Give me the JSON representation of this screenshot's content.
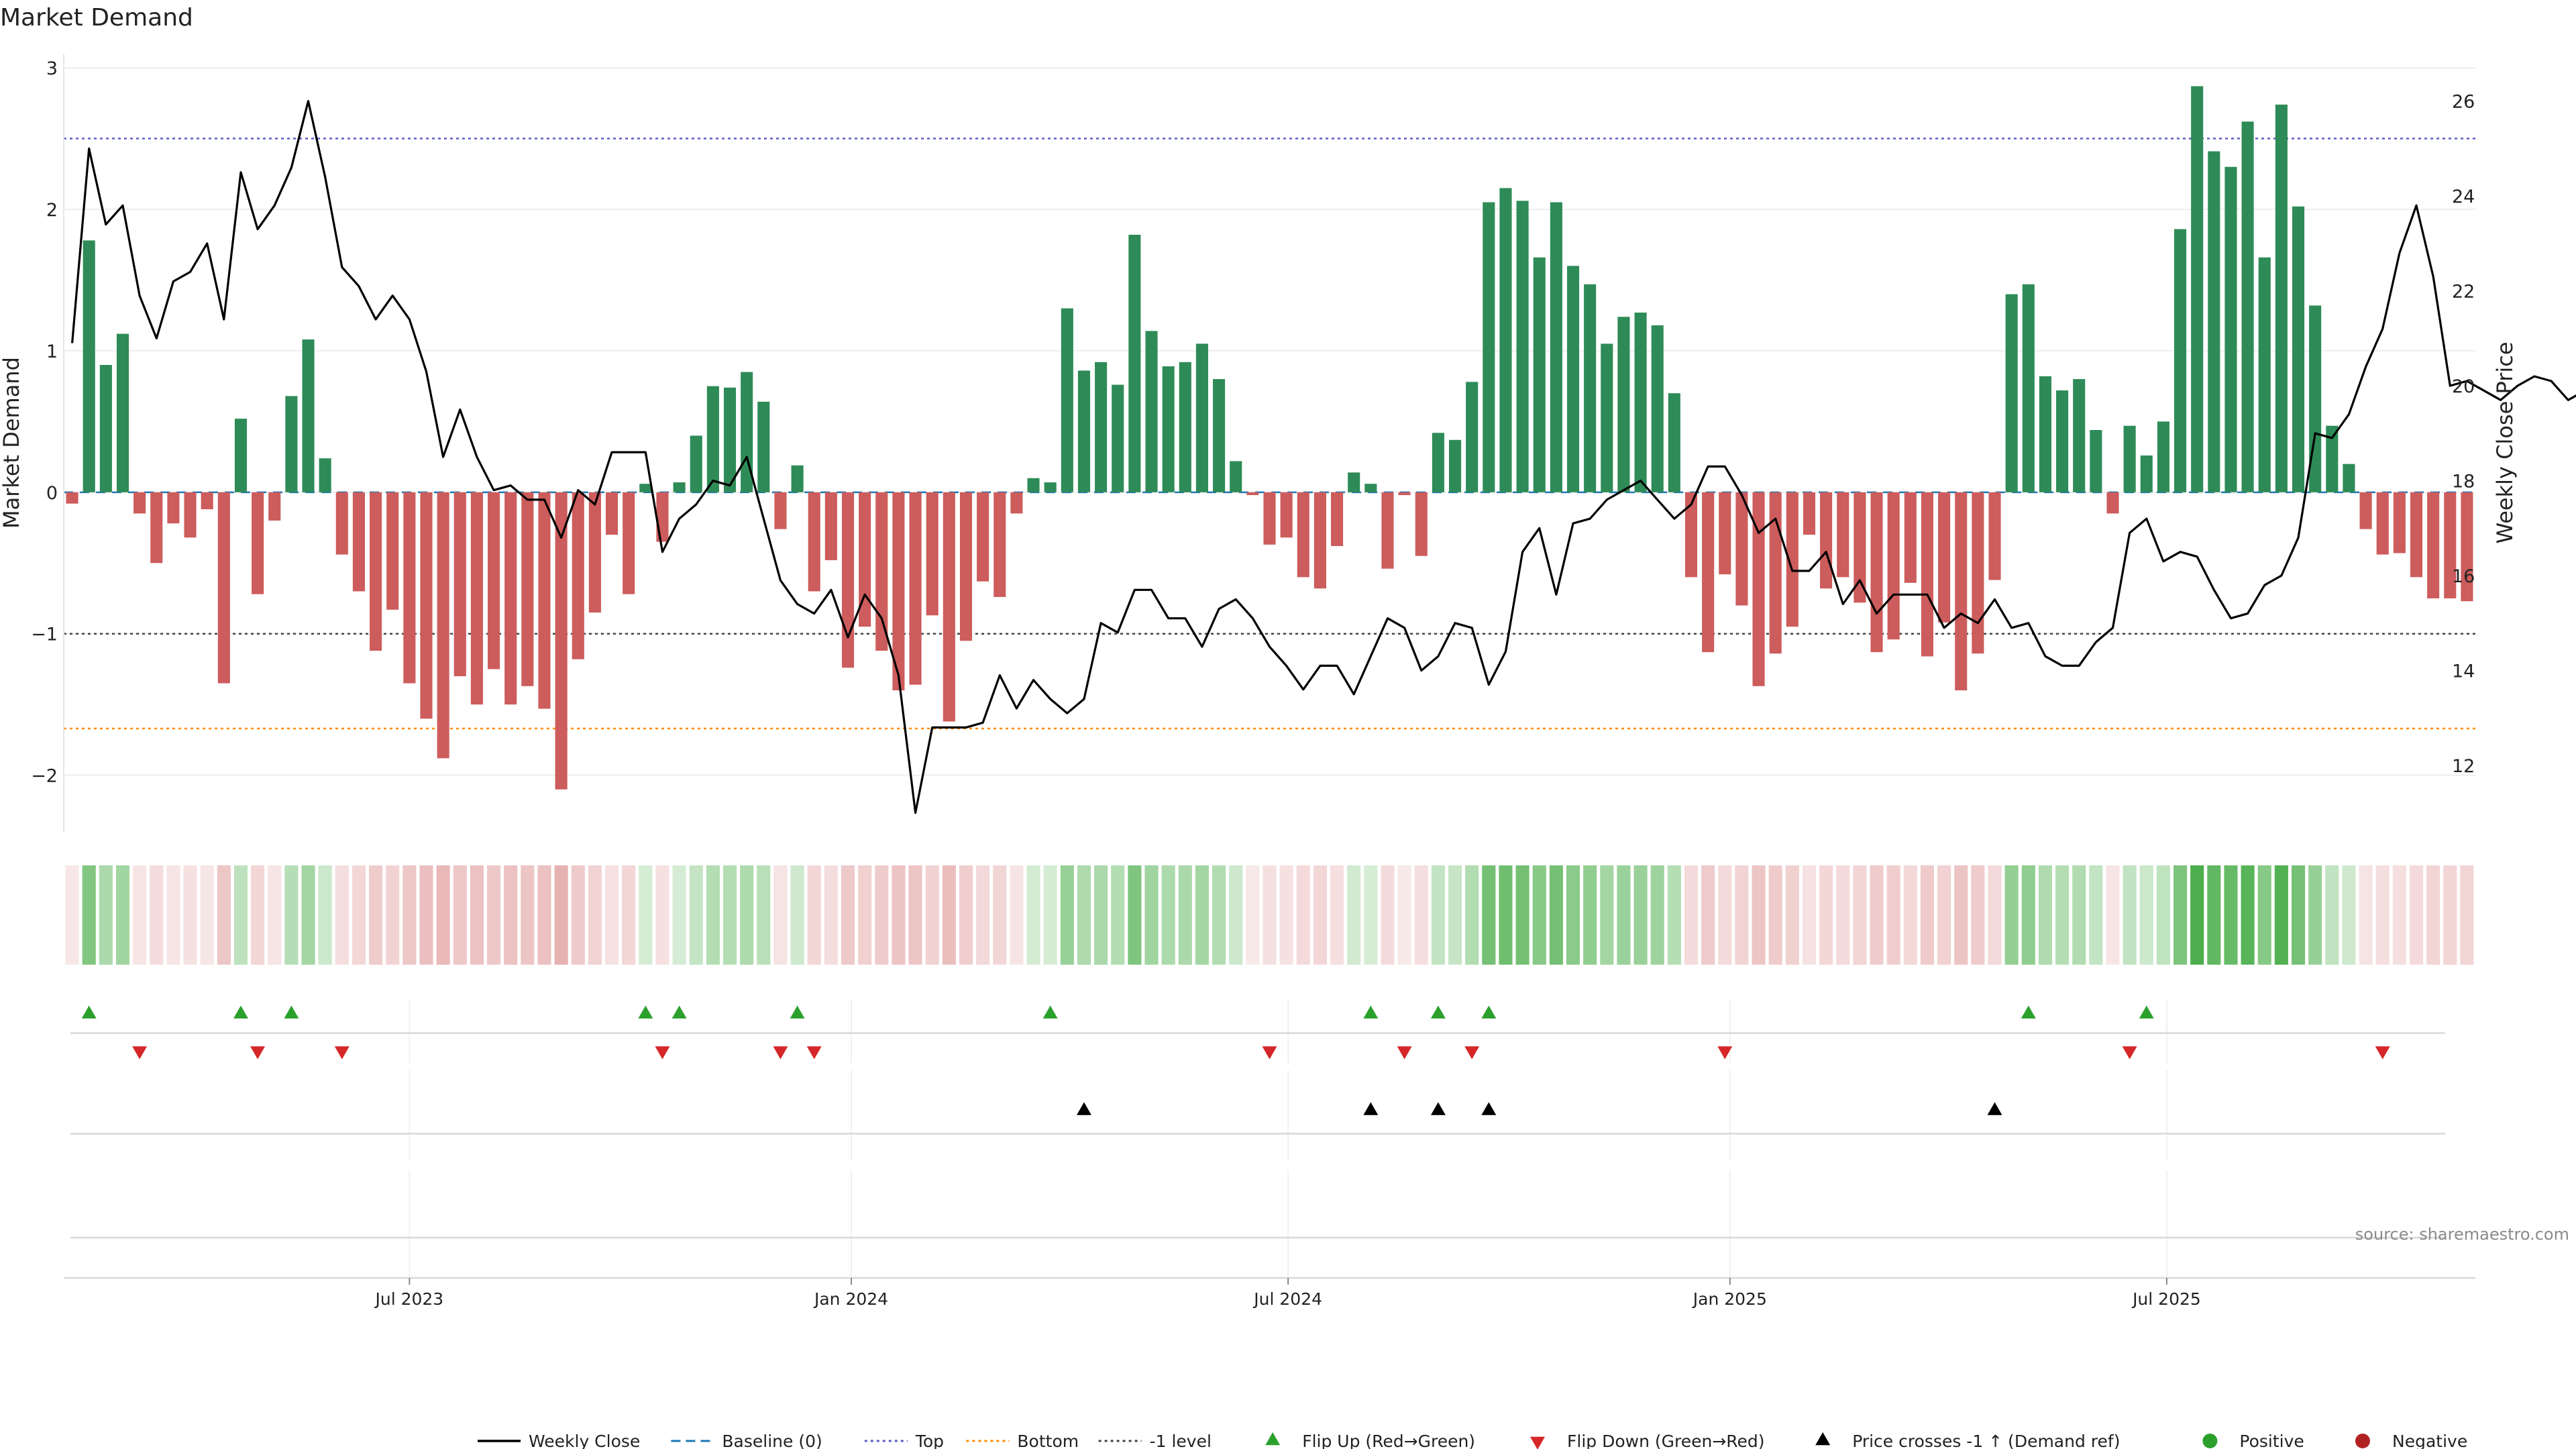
{
  "chart_data": {
    "type": "bar",
    "title": "Market Demand",
    "ylabel": "Market Demand",
    "y2label": "Weekly Close Price",
    "ylim": [
      -2.4,
      3.1
    ],
    "y2lim": [
      10.6,
      27.0
    ],
    "yticks": [
      3,
      2,
      1,
      0,
      -1,
      -2
    ],
    "ytick_labels": [
      "3",
      "2",
      "1",
      "0",
      "−1",
      "−2"
    ],
    "y2ticks": [
      26,
      24,
      22,
      20,
      18,
      16,
      14,
      12
    ],
    "y2tick_labels": [
      "26",
      "24",
      "22",
      "20",
      "18",
      "16",
      "14",
      "12"
    ],
    "xticks": [
      {
        "label": "Jul 2023",
        "index": 20
      },
      {
        "label": "Jan 2024",
        "index": 46.2
      },
      {
        "label": "Jul 2024",
        "index": 72.1
      },
      {
        "label": "Jan 2025",
        "index": 98.3
      },
      {
        "label": "Jul 2025",
        "index": 124.2
      }
    ],
    "reference_lines": {
      "top": 2.5,
      "bottom": -1.67,
      "minus_one": -1.0,
      "baseline": 0
    },
    "demand": [
      -0.08,
      1.78,
      0.9,
      1.12,
      -0.15,
      -0.5,
      -0.22,
      -0.32,
      -0.12,
      -1.35,
      0.52,
      -0.72,
      -0.2,
      0.68,
      1.08,
      0.24,
      -0.44,
      -0.7,
      -1.12,
      -0.83,
      -1.35,
      -1.6,
      -1.88,
      -1.3,
      -1.5,
      -1.25,
      -1.5,
      -1.37,
      -1.53,
      -2.1,
      -1.18,
      -0.85,
      -0.3,
      -0.72,
      0.06,
      -0.35,
      0.07,
      0.4,
      0.75,
      0.74,
      0.85,
      0.64,
      -0.26,
      0.19,
      -0.7,
      -0.48,
      -1.24,
      -0.95,
      -1.12,
      -1.4,
      -1.36,
      -0.87,
      -1.62,
      -1.05,
      -0.63,
      -0.74,
      -0.15,
      0.1,
      0.07,
      1.3,
      0.86,
      0.92,
      0.76,
      1.82,
      1.14,
      0.89,
      0.92,
      1.05,
      0.8,
      0.22,
      -0.02,
      -0.37,
      -0.32,
      -0.6,
      -0.68,
      -0.38,
      0.14,
      0.06,
      -0.54,
      -0.02,
      -0.45,
      0.42,
      0.37,
      0.78,
      2.05,
      2.15,
      2.06,
      1.66,
      2.05,
      1.6,
      1.47,
      1.05,
      1.24,
      1.27,
      1.18,
      0.7,
      -0.6,
      -1.13,
      -0.58,
      -0.8,
      -1.37,
      -1.14,
      -0.95,
      -0.3,
      -0.68,
      -0.6,
      -0.78,
      -1.13,
      -1.04,
      -0.64,
      -1.16,
      -0.92,
      -1.4,
      -1.14,
      -0.62,
      1.4,
      1.47,
      0.82,
      0.72,
      0.8,
      0.44,
      -0.15,
      0.47,
      0.26,
      0.5,
      1.86,
      2.87,
      2.41,
      2.3,
      2.62,
      1.66,
      2.74,
      2.02,
      1.32,
      0.47,
      0.2,
      -0.26,
      -0.44,
      -0.43,
      -0.6,
      -0.75,
      -0.75,
      -0.77
    ],
    "weekly_close": [
      20.9,
      25.0,
      23.4,
      23.8,
      21.9,
      21.0,
      22.2,
      22.4,
      23.0,
      21.4,
      24.5,
      23.3,
      23.8,
      24.6,
      26.0,
      24.4,
      22.5,
      22.1,
      21.4,
      21.9,
      21.4,
      20.3,
      18.5,
      19.5,
      18.5,
      17.8,
      17.9,
      17.6,
      17.6,
      16.8,
      17.8,
      17.5,
      18.6,
      18.6,
      18.6,
      16.5,
      17.2,
      17.5,
      18.0,
      17.9,
      18.5,
      17.2,
      15.9,
      15.4,
      15.2,
      15.7,
      14.7,
      15.6,
      15.1,
      13.9,
      11.0,
      12.8,
      12.8,
      12.8,
      12.9,
      13.9,
      13.2,
      13.8,
      13.4,
      13.1,
      13.4,
      15.0,
      14.8,
      15.7,
      15.7,
      15.1,
      15.1,
      14.5,
      15.3,
      15.5,
      15.1,
      14.5,
      14.1,
      13.6,
      14.1,
      14.1,
      13.5,
      14.3,
      15.1,
      14.9,
      14.0,
      14.3,
      15.0,
      14.9,
      13.7,
      14.4,
      16.5,
      17.0,
      15.6,
      17.1,
      17.2,
      17.6,
      17.8,
      18.0,
      17.6,
      17.2,
      17.5,
      18.3,
      18.3,
      17.7,
      16.9,
      17.2,
      16.1,
      16.1,
      16.5,
      15.4,
      15.9,
      15.2,
      15.6,
      15.6,
      15.6,
      14.9,
      15.2,
      15.0,
      15.5,
      14.9,
      15.0,
      14.3,
      14.1,
      14.1,
      14.6,
      14.9,
      16.9,
      17.2,
      16.3,
      16.5,
      16.4,
      15.7,
      15.1,
      15.2,
      15.8,
      16.0,
      16.8,
      19.0,
      18.9,
      19.4,
      20.4,
      21.2,
      22.8,
      23.8,
      22.3,
      20.0,
      20.1,
      19.9,
      19.7,
      20.0,
      20.2,
      20.1,
      19.7,
      19.9
    ],
    "flip_up_indices": [
      1,
      10,
      13,
      34,
      36,
      43,
      58,
      77,
      81,
      84,
      116,
      123
    ],
    "flip_down_indices": [
      4,
      11,
      16,
      35,
      42,
      44,
      71,
      79,
      83,
      98,
      122,
      137
    ],
    "price_cross_indices": [
      60,
      77,
      81,
      84,
      114
    ],
    "legend": [
      {
        "label": "Weekly Close",
        "kind": "line-solid",
        "color": "#000000"
      },
      {
        "label": "Baseline (0)",
        "kind": "line-dash",
        "color": "#1f77b4"
      },
      {
        "label": "Top",
        "kind": "line-dot",
        "color": "#5b5bc7"
      },
      {
        "label": "Bottom",
        "kind": "line-dot",
        "color": "#ff8c00"
      },
      {
        "label": "-1 level",
        "kind": "line-dot",
        "color": "#444444"
      },
      {
        "label": "Flip Up (Red→Green)",
        "kind": "triangle-up",
        "color": "#2ca02c"
      },
      {
        "label": "Flip Down (Green→Red)",
        "kind": "triangle-down",
        "color": "#d62728"
      },
      {
        "label": "Price crosses -1 ↑ (Demand ref)",
        "kind": "triangle-up",
        "color": "#000000"
      },
      {
        "label": "Positive",
        "kind": "dot",
        "color": "#2ca02c"
      },
      {
        "label": "Negative",
        "kind": "dot",
        "color": "#b22222"
      }
    ],
    "source": "source: sharemaestro.com",
    "colors": {
      "positive_bar": "#2e8b57",
      "negative_bar": "#cd5c5c",
      "line": "#000000",
      "baseline": "#1f77b4",
      "top": "#5b5bc7",
      "bottom": "#ff8c00",
      "minus_one": "#444444",
      "flip_up": "#2ca02c",
      "flip_down": "#d62728",
      "cross": "#000000"
    }
  }
}
